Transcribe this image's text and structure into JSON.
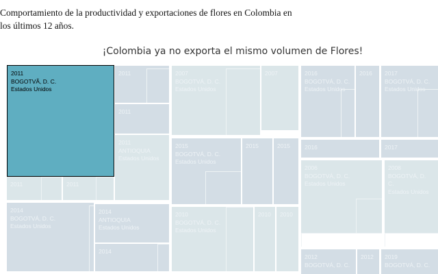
{
  "header": {
    "text": "Comportamiento de la productividad y exportaciones de flores en Colombia en los últimos 12 años."
  },
  "title": "¡Colombia ya no exporta el mismo volumen de Flores!",
  "tiles": [
    {
      "lines": [
        "2011",
        "BOGOTVÃ, D. C.",
        "Estados Unidos"
      ]
    },
    {
      "lines": [
        "2011"
      ]
    },
    {
      "lines": [
        "2011"
      ]
    },
    {
      "lines": [
        "2011",
        "ANTIOQUIA",
        "Estados Unidos"
      ]
    },
    {
      "lines": [
        "2011"
      ]
    },
    {
      "lines": [
        "2011"
      ]
    },
    {
      "lines": [
        "2007",
        "BOGOTVÁ, D. C.",
        "Estados Unidos"
      ]
    },
    {
      "lines": [
        "2007"
      ]
    },
    {
      "lines": [
        "2015",
        "BOGOTVÁ, D. C.",
        "Estados Unidos"
      ]
    },
    {
      "lines": [
        "2015"
      ]
    },
    {
      "lines": [
        "2015"
      ]
    },
    {
      "lines": [
        "2014",
        "BOGOTVÁ, D. C.",
        "Estados Unidos"
      ]
    },
    {
      "lines": [
        "2014",
        "ANTIOQUIA",
        "Estados Unidos"
      ]
    },
    {
      "lines": [
        "2014"
      ]
    },
    {
      "lines": [
        "2010",
        "BOGOTVÁ, D. C.",
        "Estados Unidos"
      ]
    },
    {
      "lines": [
        "2010"
      ]
    },
    {
      "lines": [
        "2010"
      ]
    },
    {
      "lines": [
        "2016",
        "BOGOTVÁ, D. C.",
        "Estados Unidos"
      ]
    },
    {
      "lines": [
        "2016"
      ]
    },
    {
      "lines": [
        "2017",
        "BOGOTVÁ, D. C.",
        "Estados Unidos"
      ]
    },
    {
      "lines": [
        "2016"
      ]
    },
    {
      "lines": [
        "2017"
      ]
    },
    {
      "lines": [
        "2006",
        "BOGOTVÁ, D. C.",
        "Estados Unidos"
      ]
    },
    {
      "lines": [
        "2008",
        "BOGOTVÁ, D. C.",
        "Estados Unidos"
      ]
    },
    {
      "lines": [
        "2012",
        "BOGOTVÁ, D. C."
      ]
    },
    {
      "lines": [
        "2012"
      ]
    },
    {
      "lines": [
        "2019",
        "BOGOTVÁ, D. C."
      ]
    }
  ]
}
